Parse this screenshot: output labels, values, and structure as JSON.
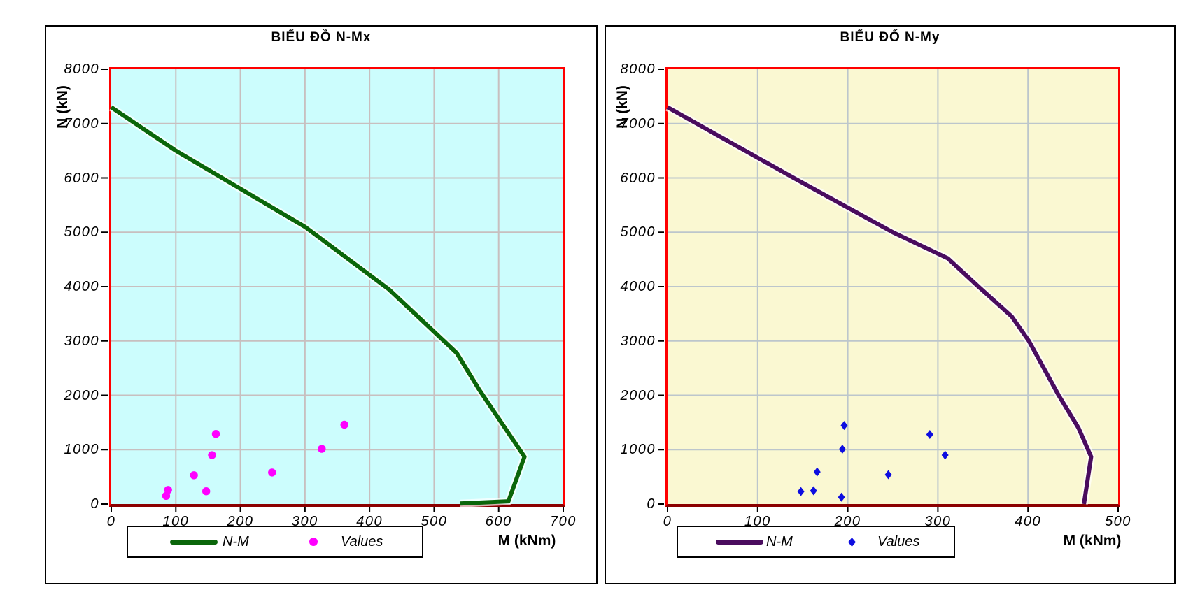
{
  "chart_data": [
    {
      "type": "line+scatter",
      "title": "BIỂU ĐỒ N-Mx",
      "xlabel": "M (kNm)",
      "ylabel": "N (kN)",
      "xlim": [
        0,
        700
      ],
      "ylim": [
        0,
        8000
      ],
      "x_ticks": [
        0,
        100,
        200,
        300,
        400,
        500,
        600,
        700
      ],
      "y_ticks": [
        0,
        1000,
        2000,
        3000,
        4000,
        5000,
        6000,
        7000,
        8000
      ],
      "grid": true,
      "legend_position": "bottom",
      "plot_bg": "#ccfdfd",
      "grid_color": "#c8bfbf",
      "border_color": "#ff0000",
      "baseline_color": "#8b0000",
      "series": [
        {
          "name": "N-M",
          "type": "line",
          "color": "#0a660a",
          "points": [
            [
              0,
              7300
            ],
            [
              100,
              6500
            ],
            [
              300,
              5100
            ],
            [
              430,
              3950
            ],
            [
              535,
              2780
            ],
            [
              570,
              2100
            ],
            [
              640,
              870
            ],
            [
              615,
              50
            ],
            [
              540,
              10
            ]
          ]
        },
        {
          "name": "Values",
          "type": "scatter",
          "marker": "circle",
          "color": "#ff00ff",
          "points": [
            [
              85,
              150
            ],
            [
              88,
              260
            ],
            [
              128,
              530
            ],
            [
              147,
              235
            ],
            [
              156,
              900
            ],
            [
              162,
              1290
            ],
            [
              249,
              580
            ],
            [
              326,
              1015
            ],
            [
              361,
              1460
            ]
          ]
        }
      ]
    },
    {
      "type": "line+scatter",
      "title": "BIỂU ĐỐ N-My",
      "xlabel": "M (kNm)",
      "ylabel": "N (kN)",
      "xlim": [
        0,
        500
      ],
      "ylim": [
        0,
        8000
      ],
      "x_ticks": [
        0,
        100,
        200,
        300,
        400,
        500
      ],
      "y_ticks": [
        0,
        1000,
        2000,
        3000,
        4000,
        5000,
        6000,
        7000,
        8000
      ],
      "grid": true,
      "legend_position": "bottom",
      "plot_bg": "#faf8d2",
      "grid_color": "#bcc6cc",
      "border_color": "#ff0000",
      "baseline_color": "#8b0000",
      "series": [
        {
          "name": "N-M",
          "type": "line",
          "color": "#4a0c5e",
          "points": [
            [
              0,
              7300
            ],
            [
              140,
              6000
            ],
            [
              250,
              5000
            ],
            [
              311,
              4520
            ],
            [
              345,
              4000
            ],
            [
              382,
              3450
            ],
            [
              401,
              3000
            ],
            [
              434,
              2000
            ],
            [
              456,
              1400
            ],
            [
              470,
              870
            ],
            [
              462,
              0
            ]
          ]
        },
        {
          "name": "Values",
          "type": "scatter",
          "marker": "diamond",
          "color": "#0d0de0",
          "points": [
            [
              148,
              230
            ],
            [
              162,
              245
            ],
            [
              166,
              590
            ],
            [
              193,
              125
            ],
            [
              194,
              1010
            ],
            [
              196,
              1445
            ],
            [
              245,
              540
            ],
            [
              291,
              1280
            ],
            [
              308,
              900
            ]
          ]
        }
      ]
    }
  ]
}
